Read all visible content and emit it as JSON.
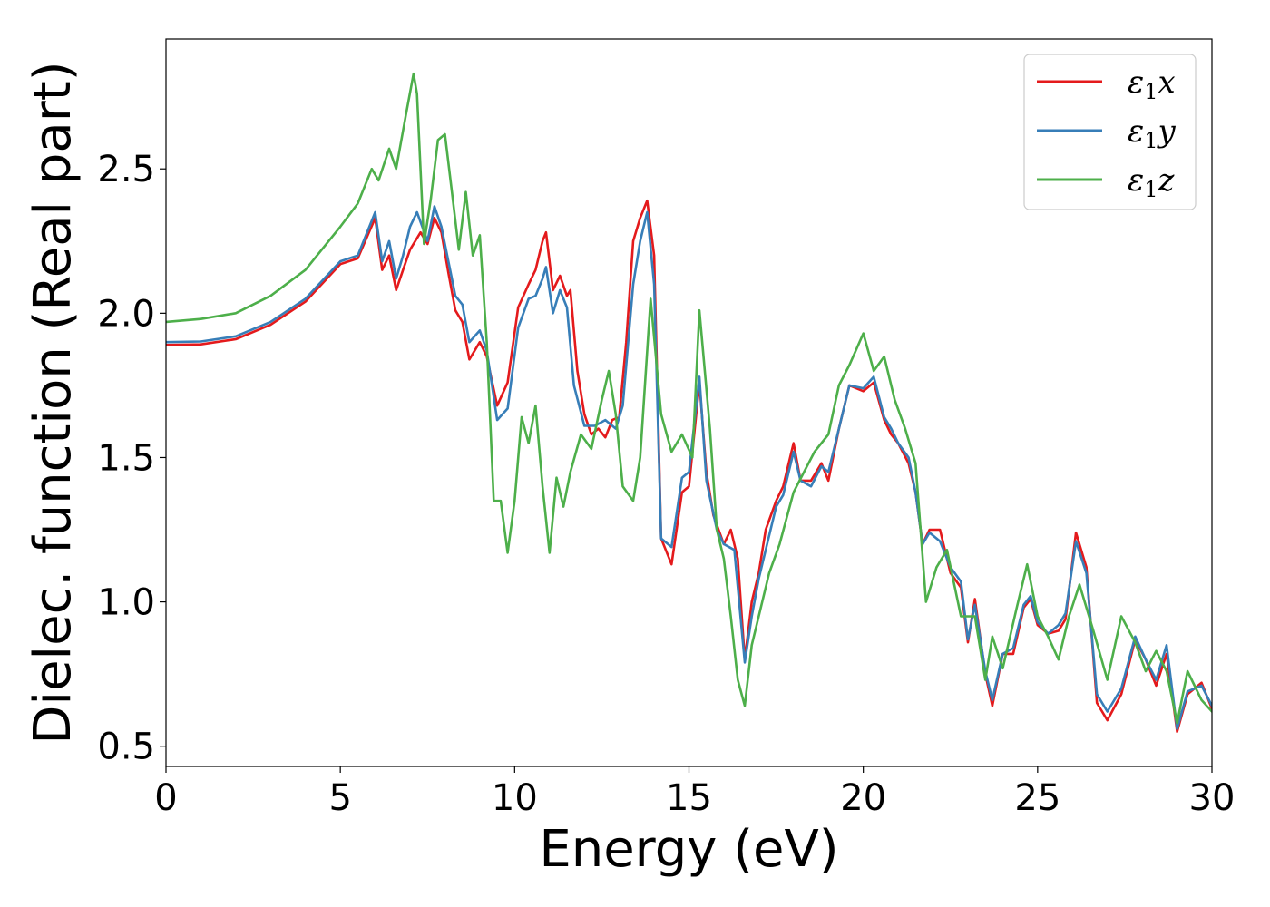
{
  "chart_data": {
    "type": "line",
    "title": "",
    "xlabel": "Energy (eV)",
    "ylabel": "Dielec. function (Real part)",
    "xlim": [
      0,
      30
    ],
    "ylim": [
      0.43,
      2.95
    ],
    "xticks": [
      0,
      5,
      10,
      15,
      20,
      25,
      30
    ],
    "xtick_labels": [
      "0",
      "5",
      "10",
      "15",
      "20",
      "25",
      "30"
    ],
    "yticks": [
      0.5,
      1.0,
      1.5,
      2.0,
      2.5
    ],
    "ytick_labels": [
      "0.5",
      "1.0",
      "1.5",
      "2.0",
      "2.5"
    ],
    "grid": false,
    "legend_position": "top-right",
    "series": [
      {
        "name": "ε1x",
        "legend_base": "ε",
        "legend_sub": "1",
        "legend_suffix": "x",
        "color": "#e41a1c",
        "points": [
          [
            0,
            1.89
          ],
          [
            1,
            1.892
          ],
          [
            2,
            1.91
          ],
          [
            3,
            1.96
          ],
          [
            4,
            2.04
          ],
          [
            5,
            2.17
          ],
          [
            5.5,
            2.19
          ],
          [
            6,
            2.33
          ],
          [
            6.2,
            2.15
          ],
          [
            6.4,
            2.2
          ],
          [
            6.6,
            2.08
          ],
          [
            6.8,
            2.15
          ],
          [
            7,
            2.22
          ],
          [
            7.3,
            2.28
          ],
          [
            7.5,
            2.24
          ],
          [
            7.7,
            2.33
          ],
          [
            7.9,
            2.28
          ],
          [
            8.1,
            2.14
          ],
          [
            8.3,
            2.01
          ],
          [
            8.5,
            1.97
          ],
          [
            8.7,
            1.84
          ],
          [
            9,
            1.9
          ],
          [
            9.2,
            1.85
          ],
          [
            9.5,
            1.68
          ],
          [
            9.8,
            1.76
          ],
          [
            10.1,
            2.02
          ],
          [
            10.4,
            2.1
          ],
          [
            10.6,
            2.15
          ],
          [
            10.8,
            2.25
          ],
          [
            10.9,
            2.28
          ],
          [
            11.1,
            2.08
          ],
          [
            11.3,
            2.13
          ],
          [
            11.5,
            2.06
          ],
          [
            11.6,
            2.08
          ],
          [
            11.8,
            1.8
          ],
          [
            12,
            1.65
          ],
          [
            12.2,
            1.58
          ],
          [
            12.4,
            1.6
          ],
          [
            12.6,
            1.57
          ],
          [
            12.8,
            1.63
          ],
          [
            13,
            1.64
          ],
          [
            13.2,
            1.9
          ],
          [
            13.4,
            2.25
          ],
          [
            13.6,
            2.33
          ],
          [
            13.8,
            2.39
          ],
          [
            14,
            2.2
          ],
          [
            14.2,
            1.22
          ],
          [
            14.5,
            1.13
          ],
          [
            14.8,
            1.38
          ],
          [
            15,
            1.4
          ],
          [
            15.3,
            1.76
          ],
          [
            15.5,
            1.45
          ],
          [
            15.7,
            1.3
          ],
          [
            16,
            1.2
          ],
          [
            16.2,
            1.25
          ],
          [
            16.4,
            1.15
          ],
          [
            16.6,
            0.8
          ],
          [
            16.8,
            1.0
          ],
          [
            17,
            1.1
          ],
          [
            17.2,
            1.25
          ],
          [
            17.5,
            1.35
          ],
          [
            17.7,
            1.4
          ],
          [
            18,
            1.55
          ],
          [
            18.2,
            1.42
          ],
          [
            18.5,
            1.42
          ],
          [
            18.8,
            1.48
          ],
          [
            19,
            1.42
          ],
          [
            19.3,
            1.6
          ],
          [
            19.6,
            1.75
          ],
          [
            20,
            1.73
          ],
          [
            20.3,
            1.76
          ],
          [
            20.6,
            1.63
          ],
          [
            20.8,
            1.58
          ],
          [
            21,
            1.55
          ],
          [
            21.3,
            1.48
          ],
          [
            21.5,
            1.38
          ],
          [
            21.7,
            1.2
          ],
          [
            21.9,
            1.25
          ],
          [
            22.2,
            1.25
          ],
          [
            22.5,
            1.1
          ],
          [
            22.8,
            1.05
          ],
          [
            23,
            0.86
          ],
          [
            23.2,
            1.01
          ],
          [
            23.5,
            0.75
          ],
          [
            23.7,
            0.64
          ],
          [
            24,
            0.82
          ],
          [
            24.3,
            0.82
          ],
          [
            24.6,
            0.98
          ],
          [
            24.8,
            1.01
          ],
          [
            25,
            0.92
          ],
          [
            25.3,
            0.89
          ],
          [
            25.6,
            0.9
          ],
          [
            25.8,
            0.94
          ],
          [
            26.1,
            1.24
          ],
          [
            26.4,
            1.12
          ],
          [
            26.7,
            0.65
          ],
          [
            27,
            0.59
          ],
          [
            27.4,
            0.68
          ],
          [
            27.8,
            0.87
          ],
          [
            28.1,
            0.8
          ],
          [
            28.4,
            0.71
          ],
          [
            28.7,
            0.82
          ],
          [
            29,
            0.55
          ],
          [
            29.3,
            0.68
          ],
          [
            29.7,
            0.72
          ],
          [
            30,
            0.63
          ]
        ]
      },
      {
        "name": "ε1y",
        "legend_base": "ε",
        "legend_sub": "1",
        "legend_suffix": "y",
        "color": "#377eb8",
        "points": [
          [
            0,
            1.9
          ],
          [
            1,
            1.902
          ],
          [
            2,
            1.92
          ],
          [
            3,
            1.97
          ],
          [
            4,
            2.05
          ],
          [
            5,
            2.18
          ],
          [
            5.5,
            2.2
          ],
          [
            6,
            2.35
          ],
          [
            6.2,
            2.18
          ],
          [
            6.4,
            2.25
          ],
          [
            6.6,
            2.12
          ],
          [
            6.8,
            2.2
          ],
          [
            7,
            2.3
          ],
          [
            7.2,
            2.35
          ],
          [
            7.5,
            2.25
          ],
          [
            7.7,
            2.37
          ],
          [
            7.9,
            2.3
          ],
          [
            8.1,
            2.18
          ],
          [
            8.3,
            2.06
          ],
          [
            8.5,
            2.03
          ],
          [
            8.7,
            1.9
          ],
          [
            9,
            1.94
          ],
          [
            9.2,
            1.87
          ],
          [
            9.5,
            1.63
          ],
          [
            9.8,
            1.67
          ],
          [
            10.1,
            1.95
          ],
          [
            10.4,
            2.05
          ],
          [
            10.6,
            2.06
          ],
          [
            10.8,
            2.12
          ],
          [
            10.9,
            2.16
          ],
          [
            11.1,
            2.0
          ],
          [
            11.3,
            2.08
          ],
          [
            11.5,
            2.02
          ],
          [
            11.7,
            1.75
          ],
          [
            12,
            1.61
          ],
          [
            12.3,
            1.61
          ],
          [
            12.6,
            1.63
          ],
          [
            12.9,
            1.6
          ],
          [
            13.1,
            1.68
          ],
          [
            13.4,
            2.1
          ],
          [
            13.6,
            2.25
          ],
          [
            13.8,
            2.35
          ],
          [
            14,
            2.1
          ],
          [
            14.2,
            1.22
          ],
          [
            14.5,
            1.19
          ],
          [
            14.8,
            1.43
          ],
          [
            15,
            1.45
          ],
          [
            15.3,
            1.78
          ],
          [
            15.5,
            1.42
          ],
          [
            15.8,
            1.25
          ],
          [
            16,
            1.2
          ],
          [
            16.3,
            1.18
          ],
          [
            16.6,
            0.79
          ],
          [
            16.8,
            0.95
          ],
          [
            17,
            1.08
          ],
          [
            17.3,
            1.23
          ],
          [
            17.5,
            1.33
          ],
          [
            17.7,
            1.37
          ],
          [
            18,
            1.52
          ],
          [
            18.2,
            1.42
          ],
          [
            18.5,
            1.4
          ],
          [
            18.8,
            1.47
          ],
          [
            19,
            1.45
          ],
          [
            19.3,
            1.6
          ],
          [
            19.6,
            1.75
          ],
          [
            20,
            1.74
          ],
          [
            20.3,
            1.78
          ],
          [
            20.6,
            1.64
          ],
          [
            20.8,
            1.6
          ],
          [
            21,
            1.55
          ],
          [
            21.3,
            1.5
          ],
          [
            21.5,
            1.38
          ],
          [
            21.7,
            1.2
          ],
          [
            21.9,
            1.24
          ],
          [
            22.2,
            1.21
          ],
          [
            22.5,
            1.12
          ],
          [
            22.8,
            1.07
          ],
          [
            23,
            0.87
          ],
          [
            23.2,
            0.99
          ],
          [
            23.5,
            0.76
          ],
          [
            23.7,
            0.66
          ],
          [
            24,
            0.82
          ],
          [
            24.3,
            0.84
          ],
          [
            24.6,
            0.99
          ],
          [
            24.8,
            1.02
          ],
          [
            25,
            0.93
          ],
          [
            25.3,
            0.89
          ],
          [
            25.6,
            0.92
          ],
          [
            25.8,
            0.96
          ],
          [
            26.1,
            1.21
          ],
          [
            26.4,
            1.1
          ],
          [
            26.7,
            0.68
          ],
          [
            27,
            0.62
          ],
          [
            27.4,
            0.7
          ],
          [
            27.8,
            0.88
          ],
          [
            28.1,
            0.8
          ],
          [
            28.4,
            0.73
          ],
          [
            28.7,
            0.85
          ],
          [
            29,
            0.56
          ],
          [
            29.3,
            0.69
          ],
          [
            29.7,
            0.71
          ],
          [
            30,
            0.64
          ]
        ]
      },
      {
        "name": "ε1z",
        "legend_base": "ε",
        "legend_sub": "1",
        "legend_suffix": "z",
        "color": "#4daf4a",
        "points": [
          [
            0,
            1.97
          ],
          [
            1,
            1.98
          ],
          [
            2,
            2.0
          ],
          [
            3,
            2.06
          ],
          [
            4,
            2.15
          ],
          [
            5,
            2.3
          ],
          [
            5.5,
            2.38
          ],
          [
            5.9,
            2.5
          ],
          [
            6.1,
            2.46
          ],
          [
            6.4,
            2.57
          ],
          [
            6.6,
            2.5
          ],
          [
            6.9,
            2.7
          ],
          [
            7.1,
            2.83
          ],
          [
            7.2,
            2.76
          ],
          [
            7.4,
            2.24
          ],
          [
            7.6,
            2.4
          ],
          [
            7.8,
            2.6
          ],
          [
            8,
            2.62
          ],
          [
            8.2,
            2.42
          ],
          [
            8.4,
            2.22
          ],
          [
            8.6,
            2.42
          ],
          [
            8.8,
            2.2
          ],
          [
            9,
            2.27
          ],
          [
            9.2,
            1.9
          ],
          [
            9.4,
            1.35
          ],
          [
            9.6,
            1.35
          ],
          [
            9.8,
            1.17
          ],
          [
            10,
            1.35
          ],
          [
            10.2,
            1.64
          ],
          [
            10.4,
            1.55
          ],
          [
            10.6,
            1.68
          ],
          [
            10.8,
            1.4
          ],
          [
            11,
            1.17
          ],
          [
            11.2,
            1.43
          ],
          [
            11.4,
            1.33
          ],
          [
            11.6,
            1.45
          ],
          [
            11.9,
            1.58
          ],
          [
            12.2,
            1.53
          ],
          [
            12.5,
            1.7
          ],
          [
            12.7,
            1.8
          ],
          [
            12.9,
            1.65
          ],
          [
            13.1,
            1.4
          ],
          [
            13.4,
            1.35
          ],
          [
            13.6,
            1.5
          ],
          [
            13.9,
            2.05
          ],
          [
            14.2,
            1.65
          ],
          [
            14.5,
            1.52
          ],
          [
            14.8,
            1.58
          ],
          [
            15.1,
            1.5
          ],
          [
            15.3,
            2.01
          ],
          [
            15.6,
            1.6
          ],
          [
            15.8,
            1.25
          ],
          [
            16,
            1.15
          ],
          [
            16.2,
            0.95
          ],
          [
            16.4,
            0.73
          ],
          [
            16.6,
            0.64
          ],
          [
            16.8,
            0.85
          ],
          [
            17,
            0.95
          ],
          [
            17.3,
            1.1
          ],
          [
            17.6,
            1.2
          ],
          [
            18,
            1.38
          ],
          [
            18.3,
            1.45
          ],
          [
            18.6,
            1.52
          ],
          [
            19,
            1.58
          ],
          [
            19.3,
            1.75
          ],
          [
            19.6,
            1.82
          ],
          [
            20,
            1.93
          ],
          [
            20.3,
            1.8
          ],
          [
            20.6,
            1.85
          ],
          [
            20.9,
            1.7
          ],
          [
            21.2,
            1.6
          ],
          [
            21.5,
            1.48
          ],
          [
            21.8,
            1.0
          ],
          [
            22.1,
            1.12
          ],
          [
            22.4,
            1.18
          ],
          [
            22.8,
            0.95
          ],
          [
            23.2,
            0.95
          ],
          [
            23.5,
            0.73
          ],
          [
            23.7,
            0.88
          ],
          [
            24,
            0.77
          ],
          [
            24.4,
            0.98
          ],
          [
            24.7,
            1.13
          ],
          [
            25,
            0.95
          ],
          [
            25.3,
            0.88
          ],
          [
            25.6,
            0.8
          ],
          [
            25.9,
            0.95
          ],
          [
            26.2,
            1.06
          ],
          [
            26.6,
            0.9
          ],
          [
            27,
            0.73
          ],
          [
            27.4,
            0.95
          ],
          [
            27.8,
            0.86
          ],
          [
            28.1,
            0.76
          ],
          [
            28.4,
            0.83
          ],
          [
            28.7,
            0.76
          ],
          [
            29,
            0.58
          ],
          [
            29.3,
            0.76
          ],
          [
            29.7,
            0.66
          ],
          [
            30,
            0.62
          ]
        ]
      }
    ]
  }
}
